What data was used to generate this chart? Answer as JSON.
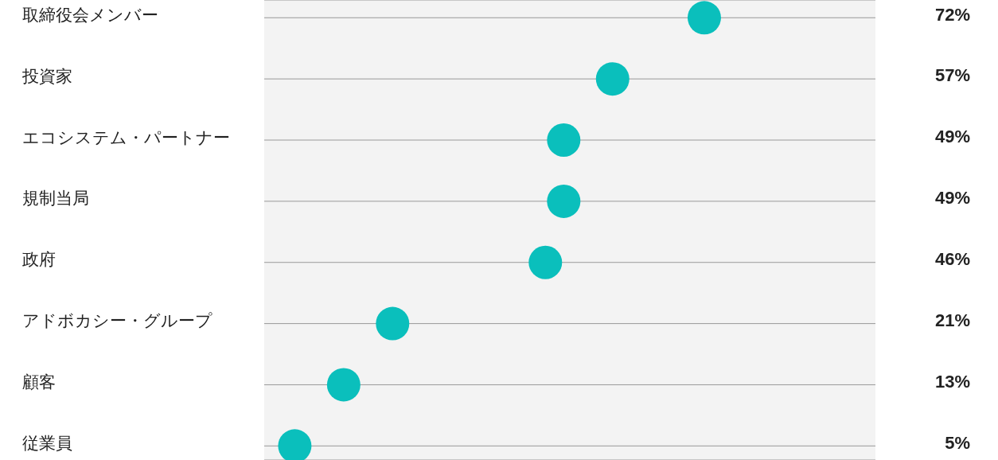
{
  "chart_data": {
    "type": "scatter",
    "orientation": "horizontal",
    "categories": [
      "取締役会メンバー",
      "投資家",
      "エコシステム・パートナー",
      "規制当局",
      "政府",
      "アドボカシー・グループ",
      "顧客",
      "従業員"
    ],
    "values": [
      72,
      57,
      49,
      49,
      46,
      21,
      13,
      5
    ],
    "value_labels": [
      "72%",
      "57%",
      "49%",
      "49%",
      "46%",
      "21%",
      "13%",
      "5%"
    ],
    "color": "#0abfbc",
    "marker": "circle",
    "xlim": [
      0,
      100
    ],
    "tick_labels": "y",
    "grid": "y"
  }
}
